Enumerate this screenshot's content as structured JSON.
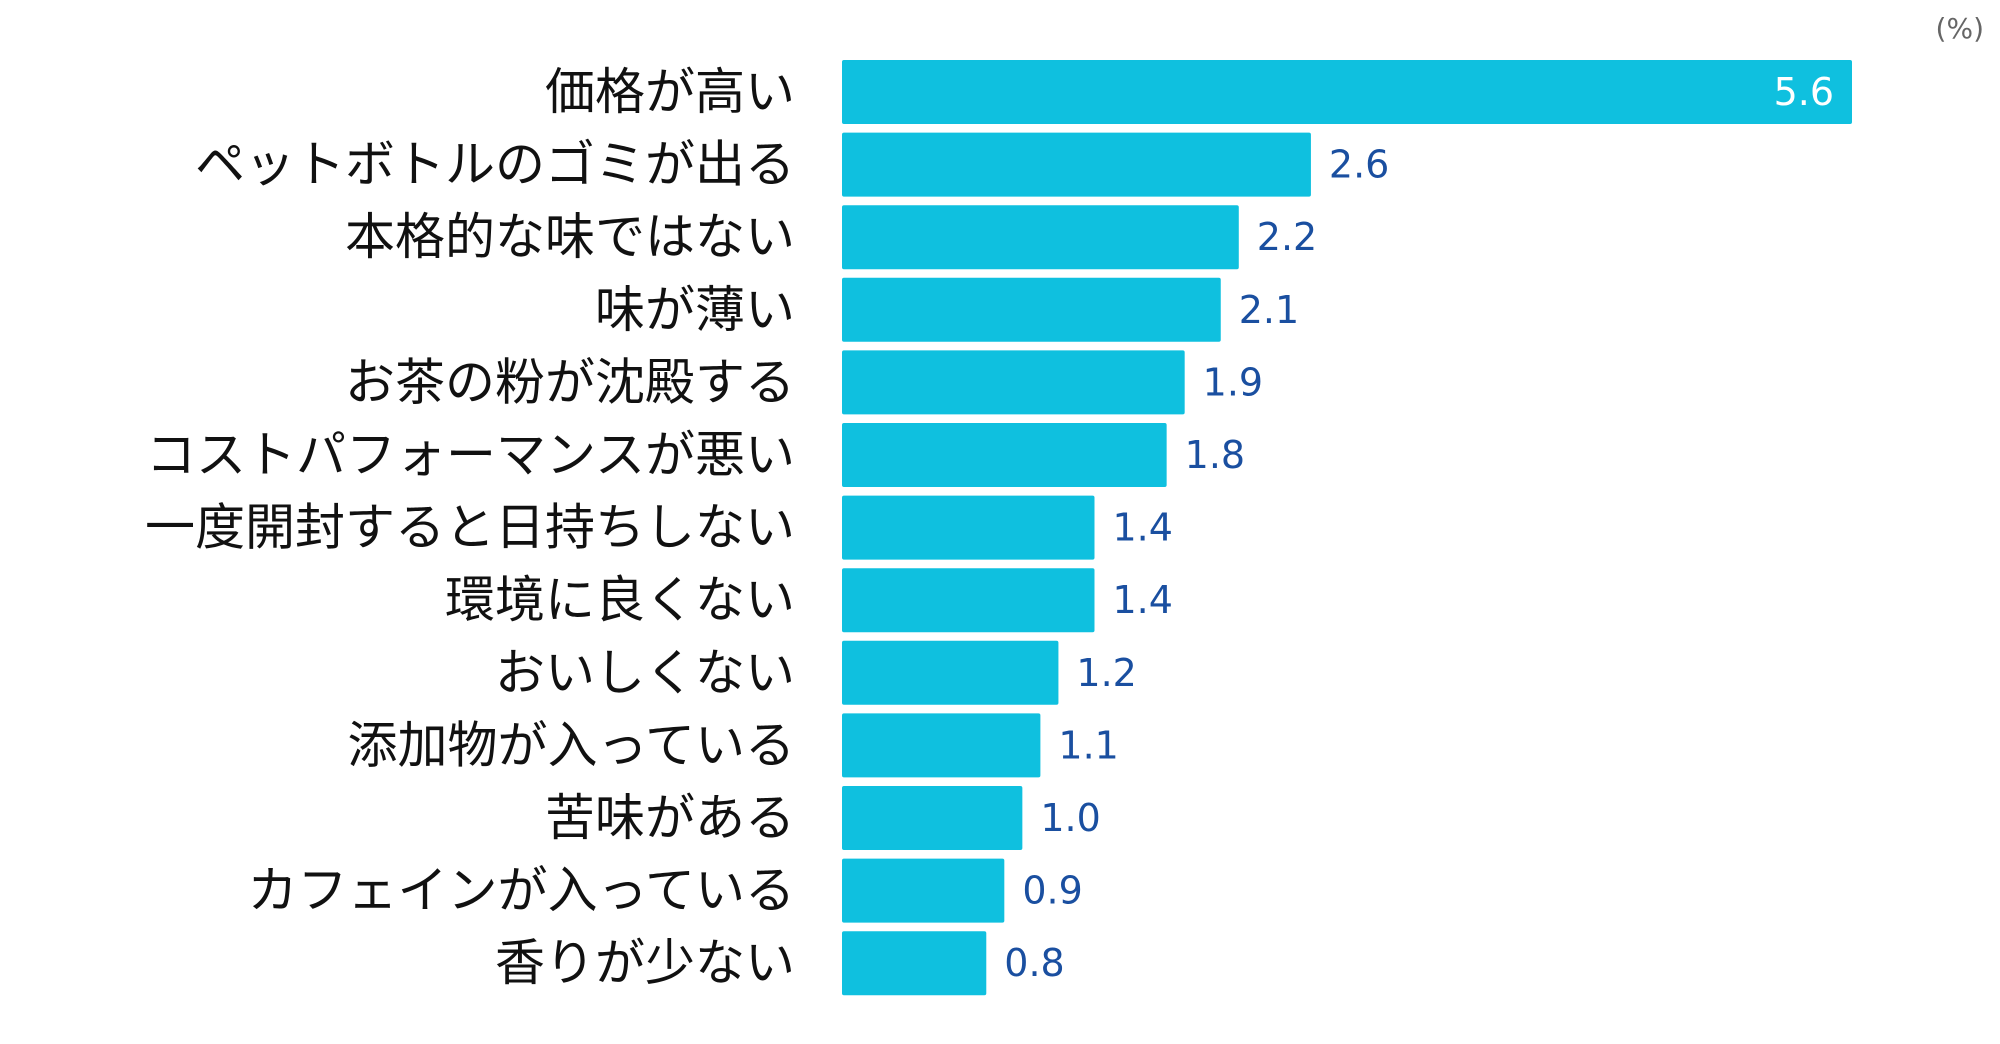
{
  "chart_data": {
    "type": "bar",
    "orientation": "horizontal",
    "unit": "(%)",
    "categories": [
      "価格が高い",
      "ペットボトルのゴミが出る",
      "本格的な味ではない",
      "味が薄い",
      "お茶の粉が沈殿する",
      "コストパフォーマンスが悪い",
      "一度開封すると日持ちしない",
      "環境に良くない",
      "おいしくない",
      "添加物が入っている",
      "苦味がある",
      "カフェインが入っている",
      "香りが少ない"
    ],
    "values": [
      5.6,
      2.6,
      2.2,
      2.1,
      1.9,
      1.8,
      1.4,
      1.4,
      1.2,
      1.1,
      1.0,
      0.9,
      0.8
    ],
    "value_labels": [
      "5.6",
      "2.6",
      "2.2",
      "2.1",
      "1.9",
      "1.8",
      "1.4",
      "1.4",
      "1.2",
      "1.1",
      "1.0",
      "0.9",
      "0.8"
    ],
    "xlim": [
      0,
      5.6
    ],
    "grid": false,
    "legend": "none",
    "colors": {
      "bar": "#0fc0df",
      "value_outside": "#1a4fa0",
      "value_inside": "#ffffff",
      "category_text": "#111111",
      "unit_text": "#666666"
    }
  }
}
